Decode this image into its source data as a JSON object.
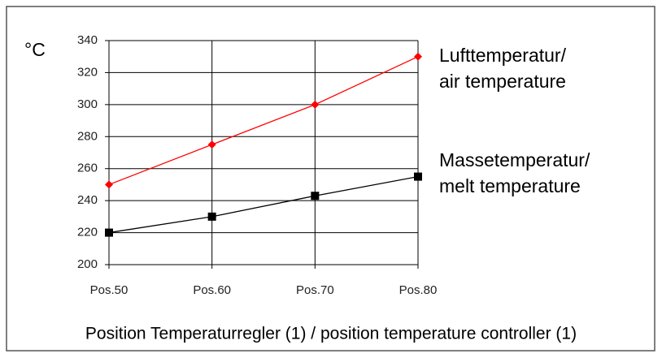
{
  "chart_data": {
    "type": "line",
    "y_unit": "°C",
    "x_label": "Position Temperaturregler (1) / position temperature controller (1)",
    "categories": [
      "Pos.50",
      "Pos.60",
      "Pos.70",
      "Pos.80"
    ],
    "series": [
      {
        "name": "Lufttemperatur/\nair temperature",
        "color": "#ff0000",
        "marker": "diamond",
        "values": [
          250,
          275,
          300,
          330
        ]
      },
      {
        "name": "Massetemperatur/\nmelt temperature",
        "color": "#000000",
        "marker": "square",
        "values": [
          220,
          230,
          243,
          255
        ]
      }
    ],
    "ylim": [
      200,
      340
    ],
    "yticks": [
      200,
      220,
      240,
      260,
      280,
      300,
      320,
      340
    ],
    "grid": true
  }
}
